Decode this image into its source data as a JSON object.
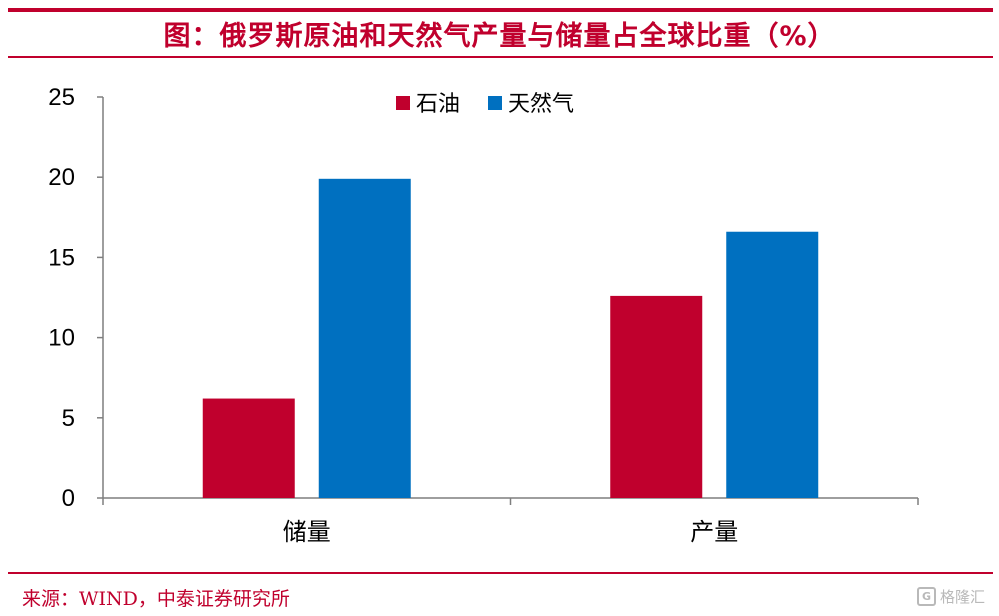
{
  "title": "图：俄罗斯原油和天然气产量与储量占全球比重（%）",
  "source": "来源：WIND，中泰证券研究所",
  "watermark": {
    "logo": "G",
    "text": "格隆汇"
  },
  "colors": {
    "accent": "#c0002d",
    "oil": "#c0002d",
    "gas": "#0070c0"
  },
  "chart_data": {
    "type": "bar",
    "categories": [
      "储量",
      "产量"
    ],
    "series": [
      {
        "name": "石油",
        "values": [
          6.2,
          12.6
        ],
        "color": "#c0002d"
      },
      {
        "name": "天然气",
        "values": [
          19.9,
          16.6
        ],
        "color": "#0070c0"
      }
    ],
    "ylim": [
      0,
      25
    ],
    "yticks": [
      0,
      5,
      10,
      15,
      20,
      25
    ],
    "legend": "top-center",
    "grid": false
  }
}
